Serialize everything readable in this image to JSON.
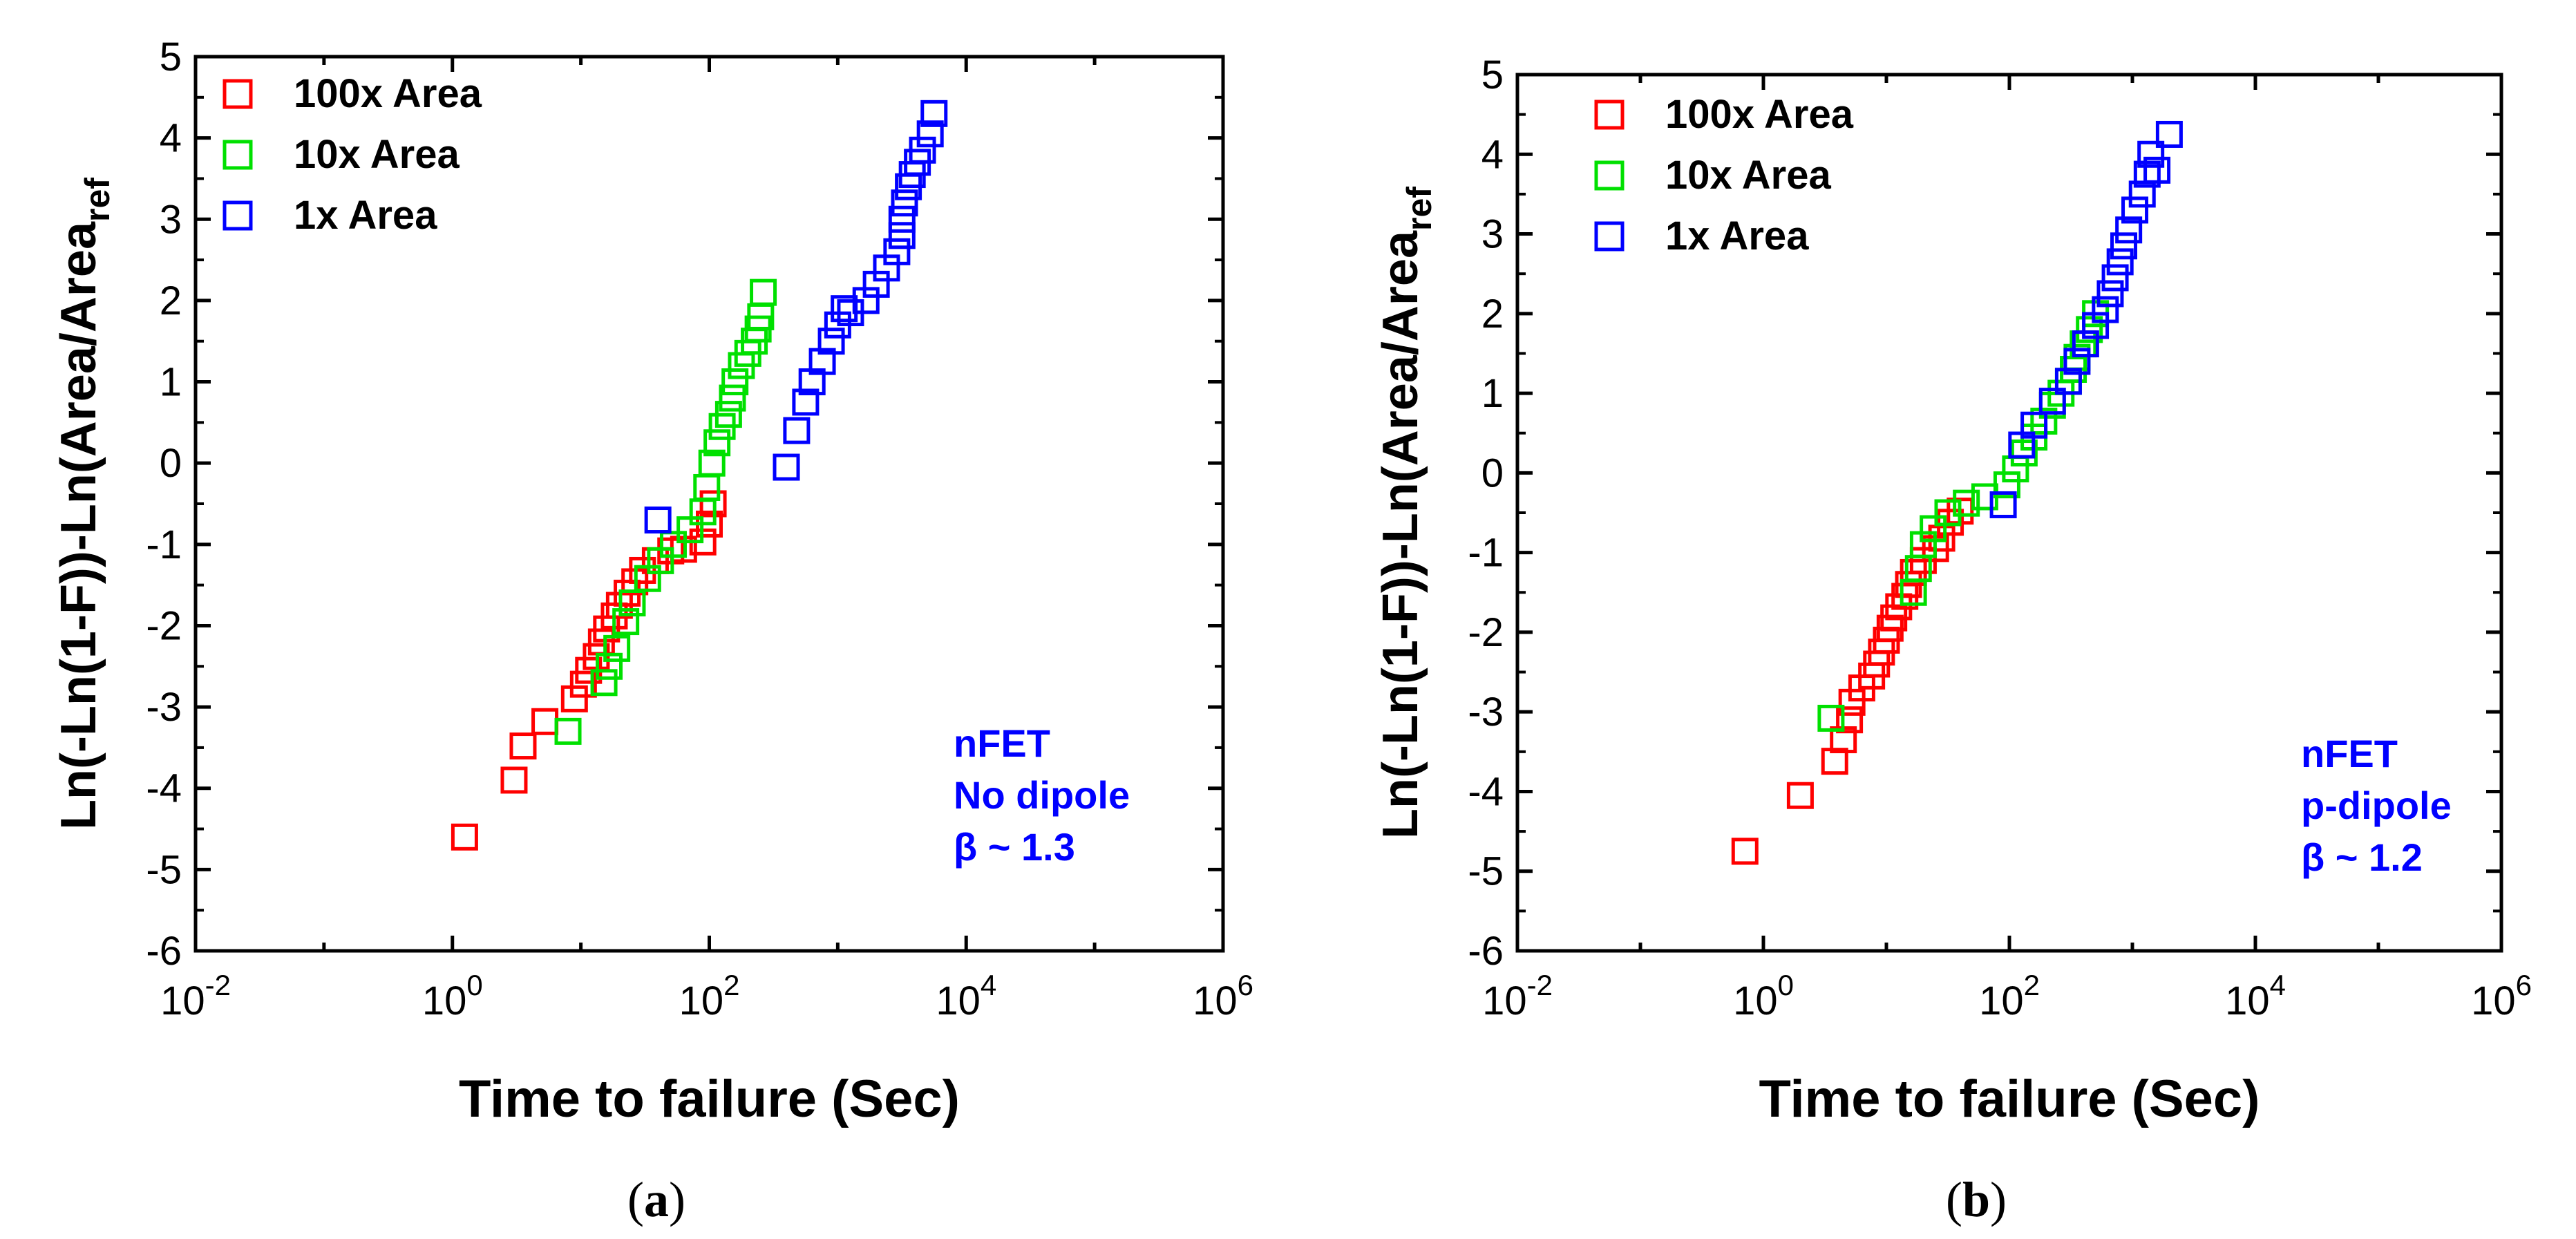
{
  "colors": {
    "s100x": "#ff0000",
    "s10x": "#00e000",
    "s1x": "#0000ff",
    "note": "#0000ff",
    "axis": "#000000"
  },
  "chart_data": [
    {
      "panel": "a",
      "caption": {
        "open": "(",
        "letter": "a",
        "close": ")"
      },
      "type": "scatter",
      "xscale": "log",
      "xlim_exp": [
        -2,
        6
      ],
      "ylim": [
        -6,
        5
      ],
      "x_ticks": [
        {
          "base": "10",
          "exp": "-2",
          "e": -2
        },
        {
          "base": "10",
          "exp": "0",
          "e": 0
        },
        {
          "base": "10",
          "exp": "2",
          "e": 2
        },
        {
          "base": "10",
          "exp": "4",
          "e": 4
        },
        {
          "base": "10",
          "exp": "6",
          "e": 6
        }
      ],
      "y_ticks": [
        5,
        4,
        3,
        2,
        1,
        0,
        -1,
        -2,
        -3,
        -4,
        -5,
        -6
      ],
      "xlabel": "Time to failure (Sec)",
      "ylabel": {
        "main": "Ln(-Ln(1-F))-Ln(Area/Area",
        "sub": "ref"
      },
      "legend": [
        "100x Area",
        "10x Area",
        " 1x Area"
      ],
      "annotation": [
        "nFET",
        "No dipole",
        "β ~ 1.3"
      ],
      "series": [
        {
          "name": "100x Area",
          "color_key": "s100x",
          "points": [
            [
              0.095,
              -4.6
            ],
            [
              0.48,
              -3.9
            ],
            [
              0.55,
              -3.48
            ],
            [
              0.72,
              -3.18
            ],
            [
              0.95,
              -2.9
            ],
            [
              1.02,
              -2.72
            ],
            [
              1.06,
              -2.55
            ],
            [
              1.12,
              -2.38
            ],
            [
              1.16,
              -2.2
            ],
            [
              1.2,
              -2.04
            ],
            [
              1.26,
              -1.88
            ],
            [
              1.3,
              -1.75
            ],
            [
              1.36,
              -1.6
            ],
            [
              1.42,
              -1.46
            ],
            [
              1.48,
              -1.32
            ],
            [
              1.58,
              -1.2
            ],
            [
              1.7,
              -1.08
            ],
            [
              1.8,
              -1.06
            ],
            [
              1.95,
              -0.97
            ],
            [
              2.0,
              -0.75
            ],
            [
              2.03,
              -0.5
            ]
          ]
        },
        {
          "name": "10x Area",
          "color_key": "s10x",
          "points": [
            [
              0.9,
              -3.3
            ],
            [
              1.18,
              -2.7
            ],
            [
              1.22,
              -2.5
            ],
            [
              1.28,
              -2.28
            ],
            [
              1.35,
              -1.95
            ],
            [
              1.4,
              -1.72
            ],
            [
              1.52,
              -1.42
            ],
            [
              1.62,
              -1.2
            ],
            [
              1.72,
              -1.0
            ],
            [
              1.85,
              -0.82
            ],
            [
              1.95,
              -0.6
            ],
            [
              1.98,
              -0.3
            ],
            [
              2.02,
              0.0
            ],
            [
              2.06,
              0.25
            ],
            [
              2.1,
              0.45
            ],
            [
              2.15,
              0.6
            ],
            [
              2.18,
              0.8
            ],
            [
              2.2,
              1.0
            ],
            [
              2.25,
              1.2
            ],
            [
              2.3,
              1.35
            ],
            [
              2.35,
              1.5
            ],
            [
              2.38,
              1.65
            ],
            [
              2.4,
              1.8
            ],
            [
              2.42,
              2.1
            ]
          ]
        },
        {
          "name": "1x Area",
          "color_key": "s1x",
          "points": [
            [
              1.6,
              -0.7
            ],
            [
              2.6,
              -0.05
            ],
            [
              2.68,
              0.4
            ],
            [
              2.75,
              0.75
            ],
            [
              2.8,
              1.0
            ],
            [
              2.88,
              1.25
            ],
            [
              2.95,
              1.5
            ],
            [
              3.0,
              1.7
            ],
            [
              3.05,
              1.9
            ],
            [
              3.1,
              1.85
            ],
            [
              3.22,
              2.0
            ],
            [
              3.3,
              2.2
            ],
            [
              3.38,
              2.4
            ],
            [
              3.46,
              2.6
            ],
            [
              3.5,
              2.8
            ],
            [
              3.5,
              3.0
            ],
            [
              3.52,
              3.2
            ],
            [
              3.55,
              3.4
            ],
            [
              3.58,
              3.55
            ],
            [
              3.62,
              3.7
            ],
            [
              3.66,
              3.85
            ],
            [
              3.72,
              4.05
            ],
            [
              3.75,
              4.3
            ]
          ]
        }
      ]
    },
    {
      "panel": "b",
      "caption": {
        "open": "(",
        "letter": "b",
        "close": ")"
      },
      "type": "scatter",
      "xscale": "log",
      "xlim_exp": [
        -2,
        6
      ],
      "ylim": [
        -6,
        5
      ],
      "x_ticks": [
        {
          "base": "10",
          "exp": "-2",
          "e": -2
        },
        {
          "base": "10",
          "exp": "0",
          "e": 0
        },
        {
          "base": "10",
          "exp": "2",
          "e": 2
        },
        {
          "base": "10",
          "exp": "4",
          "e": 4
        },
        {
          "base": "10",
          "exp": "6",
          "e": 6
        }
      ],
      "y_ticks": [
        5,
        4,
        3,
        2,
        1,
        0,
        -1,
        -2,
        -3,
        -4,
        -5,
        -6
      ],
      "xlabel": "Time to failure (Sec)",
      "ylabel": {
        "main": "Ln(-Ln(1-F))-Ln(Area/Area",
        "sub": "ref"
      },
      "legend": [
        "100x Area",
        "10x Area",
        " 1x Area"
      ],
      "annotation": [
        "nFET",
        "p-dipole",
        "β ~ 1.2"
      ],
      "series": [
        {
          "name": "100x Area",
          "color_key": "s100x",
          "points": [
            [
              -0.15,
              -4.75
            ],
            [
              0.3,
              -4.05
            ],
            [
              0.58,
              -3.62
            ],
            [
              0.65,
              -3.35
            ],
            [
              0.7,
              -3.1
            ],
            [
              0.72,
              -2.88
            ],
            [
              0.8,
              -2.7
            ],
            [
              0.88,
              -2.55
            ],
            [
              0.92,
              -2.4
            ],
            [
              0.96,
              -2.25
            ],
            [
              1.0,
              -2.1
            ],
            [
              1.03,
              -1.95
            ],
            [
              1.06,
              -1.82
            ],
            [
              1.1,
              -1.68
            ],
            [
              1.15,
              -1.55
            ],
            [
              1.18,
              -1.4
            ],
            [
              1.22,
              -1.25
            ],
            [
              1.3,
              -1.1
            ],
            [
              1.4,
              -0.95
            ],
            [
              1.45,
              -0.82
            ],
            [
              1.52,
              -0.62
            ],
            [
              1.6,
              -0.48
            ]
          ]
        },
        {
          "name": "10x Area",
          "color_key": "s10x",
          "points": [
            [
              0.55,
              -3.08
            ],
            [
              1.22,
              -1.5
            ],
            [
              1.26,
              -1.2
            ],
            [
              1.3,
              -0.9
            ],
            [
              1.38,
              -0.7
            ],
            [
              1.5,
              -0.5
            ],
            [
              1.65,
              -0.38
            ],
            [
              1.8,
              -0.3
            ],
            [
              1.98,
              -0.15
            ],
            [
              2.05,
              0.05
            ],
            [
              2.12,
              0.25
            ],
            [
              2.2,
              0.45
            ],
            [
              2.28,
              0.65
            ],
            [
              2.35,
              0.85
            ],
            [
              2.42,
              1.0
            ],
            [
              2.48,
              1.15
            ],
            [
              2.52,
              1.3
            ],
            [
              2.55,
              1.45
            ],
            [
              2.6,
              1.62
            ],
            [
              2.65,
              1.8
            ],
            [
              2.7,
              2.0
            ]
          ]
        },
        {
          "name": "1x Area",
          "color_key": "s1x",
          "points": [
            [
              1.95,
              -0.4
            ],
            [
              2.1,
              0.35
            ],
            [
              2.2,
              0.6
            ],
            [
              2.35,
              0.9
            ],
            [
              2.48,
              1.15
            ],
            [
              2.55,
              1.4
            ],
            [
              2.62,
              1.62
            ],
            [
              2.7,
              1.85
            ],
            [
              2.78,
              2.05
            ],
            [
              2.82,
              2.25
            ],
            [
              2.86,
              2.45
            ],
            [
              2.9,
              2.65
            ],
            [
              2.93,
              2.85
            ],
            [
              2.97,
              3.05
            ],
            [
              3.02,
              3.3
            ],
            [
              3.08,
              3.5
            ],
            [
              3.12,
              3.75
            ],
            [
              3.15,
              4.0
            ],
            [
              3.2,
              3.8
            ],
            [
              3.3,
              4.25
            ]
          ]
        }
      ]
    }
  ]
}
